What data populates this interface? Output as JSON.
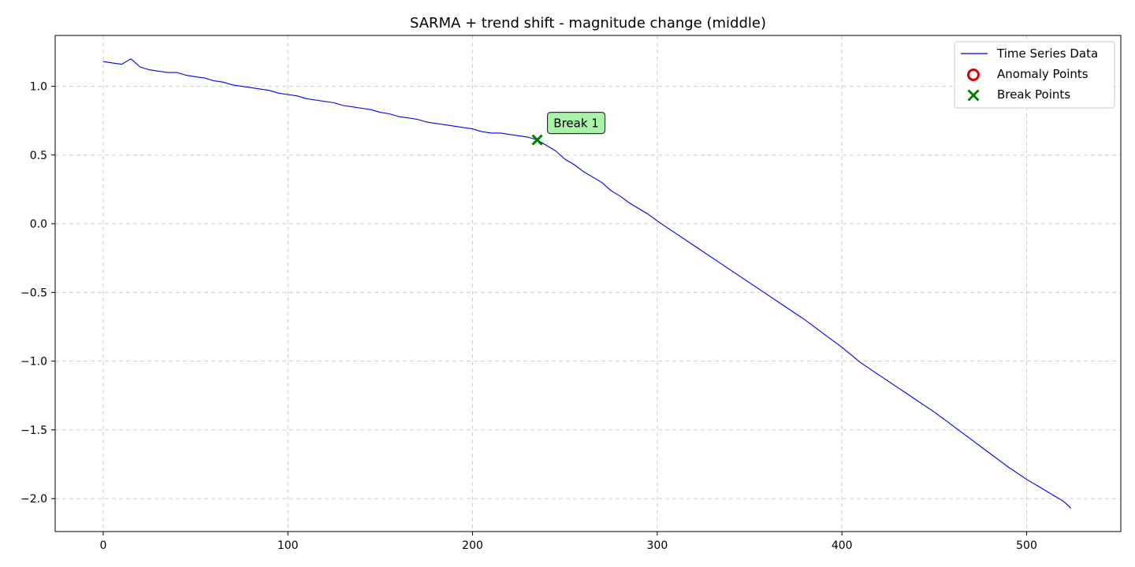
{
  "chart_data": {
    "type": "line",
    "title": "SARMA + trend shift - magnitude change (middle)",
    "xlabel": "",
    "ylabel": "",
    "xlim": [
      -26,
      551
    ],
    "ylim": [
      -2.24,
      1.37
    ],
    "x_ticks": [
      0,
      100,
      200,
      300,
      400,
      500
    ],
    "x_tick_labels": [
      "0",
      "100",
      "200",
      "300",
      "400",
      "500"
    ],
    "y_ticks": [
      1.0,
      0.5,
      0.0,
      -0.5,
      -1.0,
      -1.5,
      -2.0
    ],
    "y_tick_labels": [
      "1.0",
      "0.5",
      "0.0",
      "−0.5",
      "−1.0",
      "−1.5",
      "−2.0"
    ],
    "grid": true,
    "legend_position": "upper-right",
    "series": [
      {
        "name": "Time Series Data",
        "color": "#0000ee",
        "style": "line",
        "x": [
          0,
          5,
          10,
          15,
          20,
          25,
          30,
          35,
          40,
          45,
          50,
          55,
          60,
          65,
          70,
          75,
          80,
          85,
          90,
          95,
          100,
          105,
          110,
          115,
          120,
          125,
          130,
          135,
          140,
          145,
          150,
          155,
          160,
          165,
          170,
          175,
          180,
          185,
          190,
          195,
          200,
          205,
          210,
          215,
          220,
          225,
          230,
          235,
          240,
          245,
          250,
          255,
          260,
          265,
          270,
          275,
          280,
          285,
          290,
          295,
          300,
          310,
          320,
          330,
          340,
          350,
          360,
          370,
          380,
          390,
          400,
          410,
          420,
          430,
          440,
          450,
          460,
          470,
          480,
          490,
          500,
          510,
          520,
          524
        ],
        "y": [
          1.18,
          1.17,
          1.16,
          1.2,
          1.14,
          1.12,
          1.11,
          1.1,
          1.1,
          1.08,
          1.07,
          1.06,
          1.04,
          1.03,
          1.01,
          1.0,
          0.99,
          0.98,
          0.97,
          0.95,
          0.94,
          0.93,
          0.91,
          0.9,
          0.89,
          0.88,
          0.86,
          0.85,
          0.84,
          0.83,
          0.81,
          0.8,
          0.78,
          0.77,
          0.76,
          0.74,
          0.73,
          0.72,
          0.71,
          0.7,
          0.69,
          0.67,
          0.66,
          0.66,
          0.65,
          0.64,
          0.63,
          0.61,
          0.57,
          0.53,
          0.47,
          0.43,
          0.38,
          0.34,
          0.3,
          0.24,
          0.2,
          0.15,
          0.11,
          0.07,
          0.02,
          -0.07,
          -0.16,
          -0.25,
          -0.34,
          -0.43,
          -0.52,
          -0.61,
          -0.7,
          -0.8,
          -0.9,
          -1.01,
          -1.1,
          -1.19,
          -1.28,
          -1.37,
          -1.47,
          -1.57,
          -1.67,
          -1.77,
          -1.86,
          -1.94,
          -2.02,
          -2.07
        ]
      },
      {
        "name": "Anomaly Points",
        "color": "#e00000",
        "style": "marker-circle",
        "x": [],
        "y": []
      },
      {
        "name": "Break Points",
        "color": "#008000",
        "style": "marker-x",
        "x": [
          235
        ],
        "y": [
          0.61
        ]
      }
    ],
    "annotations": [
      {
        "text": "Break 1",
        "x": 235,
        "y": 0.61,
        "box_color": "#aaf2aa",
        "border_color": "#333333"
      }
    ]
  }
}
